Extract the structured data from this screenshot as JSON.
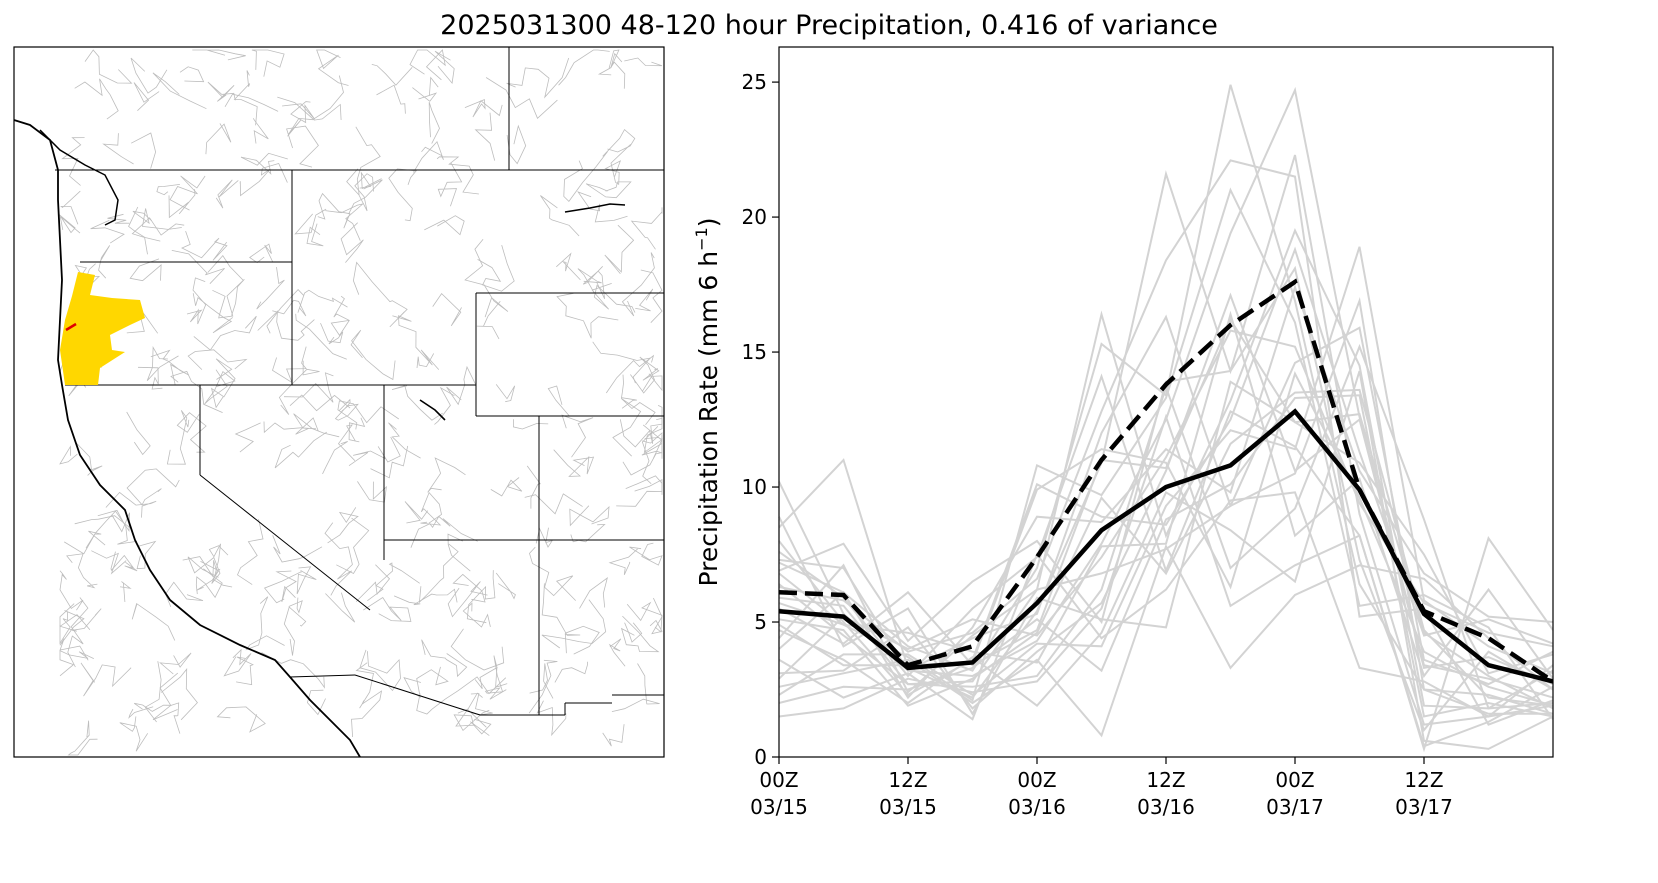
{
  "title": "2025031300 48-120 hour Precipitation, 0.416 of variance",
  "colors": {
    "member": "#d3d3d3",
    "mean": "#000000",
    "highlight": "#ffd700",
    "highlight_edge": "#e00000",
    "basin_lines": "#bdbdbd",
    "boundaries": "#000000"
  },
  "map": {
    "type": "map",
    "highlighted_region": "Oregon coastal basins (yellow fill)"
  },
  "chart_data": {
    "type": "line",
    "xlabel": "",
    "ylabel": "Precipitation Rate (mm 6 h⁻¹)",
    "ylabel_base": "Precipitation Rate (mm 6 h",
    "ylabel_sup": "−1",
    "ylabel_end": ")",
    "ylim": [
      0,
      26.3
    ],
    "yticks": [
      0,
      5,
      10,
      15,
      20,
      25
    ],
    "xlim": [
      0,
      18
    ],
    "x": [
      0,
      2,
      3,
      4,
      6,
      8,
      10,
      12,
      14,
      15,
      16,
      18
    ],
    "xtick_positions": [
      0,
      3,
      6,
      9,
      12,
      15
    ],
    "xtick_labels": [
      "00Z\n03/15",
      "12Z\n03/15",
      "00Z\n03/16",
      "12Z\n03/16",
      "00Z\n03/17",
      "12Z\n03/17"
    ],
    "grid": false,
    "mean_solid": {
      "x": [
        0,
        1.5,
        3,
        4.5,
        6,
        7.5,
        9,
        10.5,
        12,
        13.5,
        15,
        16.5,
        18
      ],
      "values": [
        5.4,
        5.2,
        3.3,
        3.5,
        5.7,
        8.4,
        10.0,
        10.8,
        12.8,
        9.9,
        5.3,
        3.4,
        2.8
      ]
    },
    "mean_dashed": {
      "x": [
        0,
        1.5,
        3,
        4.5,
        6,
        7.5,
        9,
        10.5,
        12,
        13.5,
        15,
        16.5,
        18
      ],
      "values": [
        6.1,
        6.0,
        3.4,
        4.1,
        7.4,
        11.0,
        13.8,
        16.0,
        17.6,
        9.9,
        5.4,
        4.4,
        2.8
      ]
    },
    "members_x": [
      0,
      1.5,
      3,
      4.5,
      6,
      7.5,
      9,
      10.5,
      12,
      13.5,
      15,
      16.5,
      18
    ],
    "members": [
      [
        10.2,
        5.3,
        3.2,
        3.0,
        4.3,
        7.9,
        12.5,
        19.4,
        24.7,
        12.6,
        3.4,
        2.9,
        2.2
      ],
      [
        8.5,
        11.0,
        3.3,
        2.2,
        5.4,
        10.9,
        21.6,
        14.3,
        22.3,
        9.0,
        1.2,
        1.5,
        1.9
      ],
      [
        7.2,
        6.1,
        4.1,
        3.2,
        7.0,
        15.3,
        13.4,
        24.9,
        16.9,
        6.4,
        2.5,
        1.6,
        1.6
      ],
      [
        6.3,
        5.8,
        3.9,
        4.6,
        6.6,
        12.8,
        18.4,
        22.1,
        21.5,
        5.2,
        5.5,
        1.2,
        2.1
      ],
      [
        5.9,
        5.6,
        2.7,
        2.8,
        6.2,
        16.4,
        8.2,
        13.2,
        19.5,
        14.5,
        1.9,
        1.8,
        3.2
      ],
      [
        6.8,
        4.9,
        3.7,
        2.1,
        10.8,
        9.7,
        13.3,
        21.0,
        16.1,
        5.6,
        6.0,
        4.8,
        1.4
      ],
      [
        4.4,
        7.1,
        2.4,
        4.5,
        6.2,
        6.8,
        7.7,
        9.3,
        14.6,
        15.9,
        3.6,
        2.7,
        3.9
      ],
      [
        8.0,
        5.0,
        2.3,
        3.6,
        10.1,
        8.9,
        8.6,
        12.5,
        18.8,
        11.3,
        4.5,
        5.1,
        4.2
      ],
      [
        5.5,
        4.2,
        6.1,
        3.4,
        4.7,
        11.0,
        10.7,
        16.2,
        12.4,
        12.7,
        4.6,
        3.0,
        1.8
      ],
      [
        4.0,
        6.1,
        2.2,
        4.8,
        8.9,
        8.7,
        11.4,
        9.8,
        17.4,
        10.6,
        6.8,
        5.2,
        5.0
      ],
      [
        6.9,
        7.9,
        4.3,
        6.5,
        8.0,
        5.0,
        13.9,
        14.3,
        18.1,
        7.3,
        1.0,
        3.9,
        2.5
      ],
      [
        7.3,
        7.0,
        3.2,
        4.4,
        5.3,
        12.0,
        16.3,
        9.3,
        10.5,
        16.9,
        2.5,
        2.3,
        1.6
      ],
      [
        3.1,
        3.2,
        4.8,
        1.8,
        3.9,
        5.7,
        10.6,
        17.1,
        10.6,
        12.5,
        3.3,
        3.7,
        2.7
      ],
      [
        2.9,
        5.2,
        4.0,
        5.1,
        4.5,
        7.4,
        11.1,
        15.8,
        15.2,
        9.4,
        5.7,
        4.6,
        4.1
      ],
      [
        5.1,
        4.7,
        1.9,
        2.9,
        4.6,
        9.6,
        6.8,
        11.6,
        13.5,
        13.6,
        4.7,
        2.2,
        1.9
      ],
      [
        6.4,
        4.5,
        2.7,
        2.6,
        3.0,
        6.2,
        13.7,
        7.0,
        9.2,
        15.2,
        8.8,
        1.8,
        2.0
      ],
      [
        2.3,
        3.8,
        3.8,
        2.3,
        4.2,
        4.1,
        9.3,
        12.1,
        11.4,
        18.9,
        5.8,
        4.1,
        3.1
      ],
      [
        7.6,
        5.9,
        3.0,
        5.5,
        7.4,
        14.1,
        6.9,
        12.8,
        11.5,
        8.2,
        0.4,
        1.3,
        2.6
      ],
      [
        4.9,
        3.4,
        3.4,
        3.5,
        9.9,
        11.4,
        10.9,
        6.3,
        14.2,
        9.6,
        3.9,
        2.6,
        1.9
      ],
      [
        8.9,
        4.1,
        5.5,
        1.6,
        5.9,
        5.1,
        4.8,
        13.9,
        12.4,
        10.9,
        7.5,
        3.1,
        3.8
      ],
      [
        2.0,
        2.6,
        2.5,
        3.3,
        5.1,
        3.2,
        8.8,
        10.1,
        13.3,
        13.4,
        1.5,
        2.0,
        1.5
      ],
      [
        5.7,
        4.9,
        4.6,
        3.9,
        3.5,
        7.8,
        7.9,
        16.4,
        8.2,
        10.3,
        3.0,
        6.2,
        2.9
      ],
      [
        1.5,
        1.8,
        2.9,
        2.4,
        2.8,
        5.5,
        12.6,
        5.6,
        7.1,
        8.2,
        0.3,
        8.1,
        4.7
      ],
      [
        3.6,
        2.2,
        3.1,
        1.4,
        7.5,
        4.4,
        6.2,
        9.5,
        9.8,
        3.3,
        2.8,
        1.5,
        3.4
      ],
      [
        4.7,
        3.6,
        2.0,
        3.7,
        1.9,
        4.6,
        9.8,
        8.4,
        6.5,
        14.3,
        0.6,
        0.3,
        1.5
      ],
      [
        2.6,
        3.1,
        3.6,
        2.0,
        3.6,
        0.8,
        7.8,
        3.3,
        6.0,
        7.1,
        6.6,
        4.4,
        2.5
      ]
    ]
  }
}
